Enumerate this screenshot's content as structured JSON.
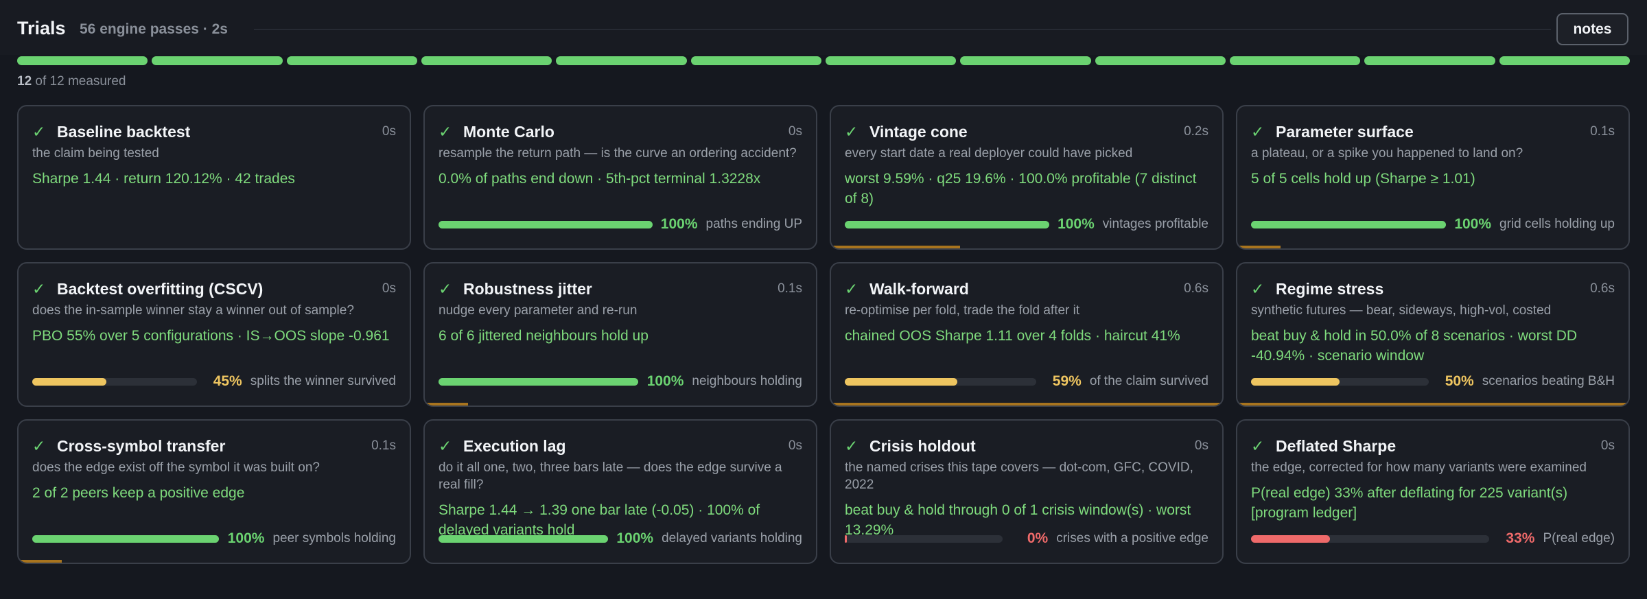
{
  "header": {
    "title": "Trials",
    "subtitle": "56 engine passes · 2s",
    "notes_label": "notes"
  },
  "progress": {
    "segments_total": 12,
    "segments_done": 12,
    "measured_count": "12",
    "measured_suffix": "of 12 measured",
    "segment_color": "#6bd371"
  },
  "colors": {
    "pass": "#6bd371",
    "warn": "#eec560",
    "fail": "#ef6a6a",
    "edge_accent": "#a8741e"
  },
  "cards": [
    {
      "id": "baseline-backtest",
      "title": "Baseline backtest",
      "duration": "0s",
      "desc": "the claim being tested",
      "result": "Sharpe 1.44 · return 120.12% · 42 trades",
      "bar": null,
      "edge_fraction": 0
    },
    {
      "id": "monte-carlo",
      "title": "Monte Carlo",
      "duration": "0s",
      "desc": "resample the return path — is the curve an ordering accident?",
      "result": "0.0% of paths end down · 5th-pct terminal 1.3228x",
      "bar": {
        "fraction": 1.0,
        "pct": "100%",
        "label": "paths ending UP",
        "tone": "green"
      },
      "edge_fraction": 0
    },
    {
      "id": "vintage-cone",
      "title": "Vintage cone",
      "duration": "0.2s",
      "desc": "every start date a real deployer could have picked",
      "result": "worst 9.59% · q25 19.6% · 100.0% profitable (7 distinct of 8)",
      "bar": {
        "fraction": 1.0,
        "pct": "100%",
        "label": "vintages profitable",
        "tone": "green"
      },
      "edge_fraction": 0.33
    },
    {
      "id": "parameter-surface",
      "title": "Parameter surface",
      "duration": "0.1s",
      "desc": "a plateau, or a spike you happened to land on?",
      "result": "5 of 5 cells hold up (Sharpe ≥ 1.01)",
      "bar": {
        "fraction": 1.0,
        "pct": "100%",
        "label": "grid cells holding up",
        "tone": "green"
      },
      "edge_fraction": 0.11
    },
    {
      "id": "backtest-overfitting",
      "title": "Backtest overfitting (CSCV)",
      "duration": "0s",
      "desc": "does the in-sample winner stay a winner out of sample?",
      "result": "PBO 55% over 5 configurations · IS→OOS slope -0.961",
      "bar": {
        "fraction": 0.45,
        "pct": "45%",
        "label": "splits the winner survived",
        "tone": "yellow"
      },
      "edge_fraction": 0
    },
    {
      "id": "robustness-jitter",
      "title": "Robustness jitter",
      "duration": "0.1s",
      "desc": "nudge every parameter and re-run",
      "result": "6 of 6 jittered neighbours hold up",
      "bar": {
        "fraction": 1.0,
        "pct": "100%",
        "label": "neighbours holding",
        "tone": "green"
      },
      "edge_fraction": 0.11
    },
    {
      "id": "walk-forward",
      "title": "Walk-forward",
      "duration": "0.6s",
      "desc": "re-optimise per fold, trade the fold after it",
      "result": "chained OOS Sharpe 1.11 over 4 folds · haircut 41%",
      "bar": {
        "fraction": 0.59,
        "pct": "59%",
        "label": "of the claim survived",
        "tone": "yellow"
      },
      "edge_fraction": 1.0
    },
    {
      "id": "regime-stress",
      "title": "Regime stress",
      "duration": "0.6s",
      "desc": "synthetic futures — bear, sideways, high-vol, costed",
      "result": "beat buy & hold in 50.0% of 8 scenarios · worst DD -40.94% · scenario window",
      "bar": {
        "fraction": 0.5,
        "pct": "50%",
        "label": "scenarios beating B&H",
        "tone": "yellow"
      },
      "edge_fraction": 1.0
    },
    {
      "id": "cross-symbol-transfer",
      "title": "Cross-symbol transfer",
      "duration": "0.1s",
      "desc": "does the edge exist off the symbol it was built on?",
      "result": "2 of 2 peers keep a positive edge",
      "bar": {
        "fraction": 1.0,
        "pct": "100%",
        "label": "peer symbols holding",
        "tone": "green"
      },
      "edge_fraction": 0.11
    },
    {
      "id": "execution-lag",
      "title": "Execution lag",
      "duration": "0s",
      "desc": "do it all one, two, three bars late — does the edge survive a real fill?",
      "result": "Sharpe 1.44 → 1.39 one bar late (-0.05) · 100% of delayed variants hold",
      "bar": {
        "fraction": 1.0,
        "pct": "100%",
        "label": "delayed variants holding",
        "tone": "green"
      },
      "edge_fraction": 0
    },
    {
      "id": "crisis-holdout",
      "title": "Crisis holdout",
      "duration": "0s",
      "desc": "the named crises this tape covers — dot-com, GFC, COVID, 2022",
      "result": "beat buy & hold through 0 of 1 crisis window(s) · worst 13.29%",
      "bar": {
        "fraction": 0.0,
        "pct": "0%",
        "label": "crises with a positive edge",
        "tone": "red"
      },
      "edge_fraction": 0
    },
    {
      "id": "deflated-sharpe",
      "title": "Deflated Sharpe",
      "duration": "0s",
      "desc": "the edge, corrected for how many variants were examined",
      "result": "P(real edge) 33% after deflating for 225 variant(s) [program ledger]",
      "bar": {
        "fraction": 0.33,
        "pct": "33%",
        "label": "P(real edge)",
        "tone": "red"
      },
      "edge_fraction": 0
    }
  ]
}
